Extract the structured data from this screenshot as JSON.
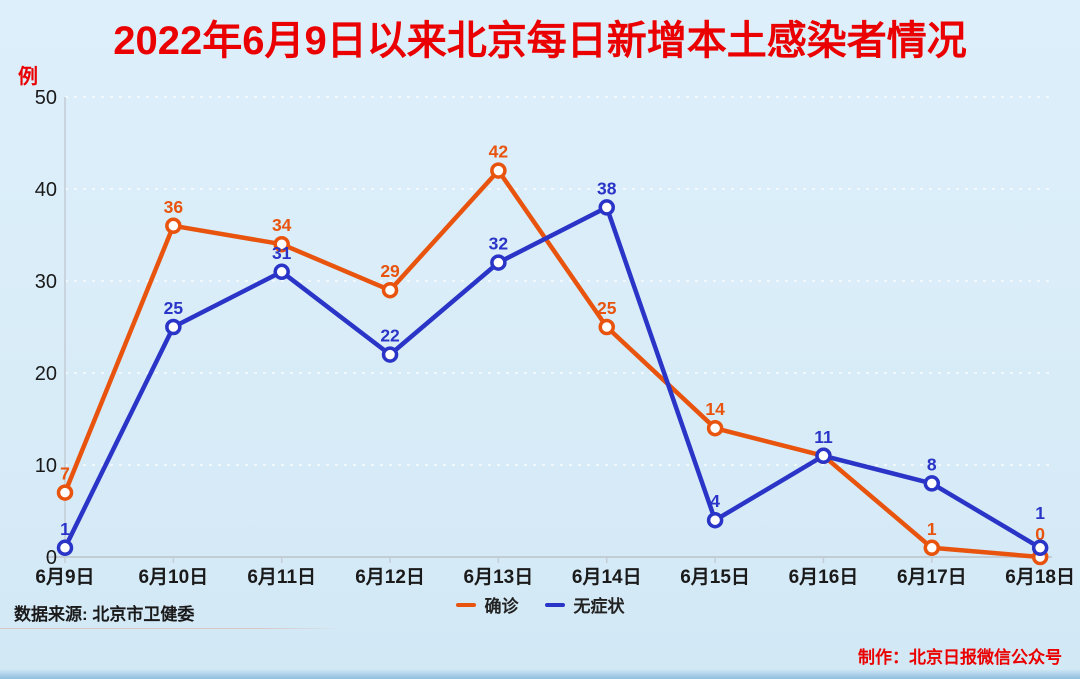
{
  "page": {
    "title": "2022年6月9日以来北京每日新增本土感染者情况"
  },
  "source": {
    "label": "数据来源: 北京市卫健委"
  },
  "credit": {
    "label": "制作：北京日报微信公众号"
  },
  "colors": {
    "background": "#d9edf8",
    "title_red": "#ea0000",
    "confirmed_orange": "#e8540e",
    "asymptomatic_blue": "#2a35c8",
    "axis_gray": "#c2cbd4",
    "tick_text": "#1a1a1a",
    "grid_white": "#ffffff"
  },
  "chart_data": {
    "type": "line",
    "title": "2022年6月9日以来北京每日新增本土感染者情况",
    "xlabel": "",
    "ylabel": "例",
    "ylim": [
      0,
      50
    ],
    "ytick_step": 10,
    "yticks": [
      0,
      10,
      20,
      30,
      40,
      50
    ],
    "grid": true,
    "grid_style": "dashed",
    "legend_position": "bottom-center",
    "marker": "open-circle-white-fill",
    "categories": [
      "6月9日",
      "6月10日",
      "6月11日",
      "6月12日",
      "6月13日",
      "6月14日",
      "6月15日",
      "6月16日",
      "6月17日",
      "6月18日"
    ],
    "series": [
      {
        "name": "确诊",
        "color": "#e8540e",
        "values": [
          7,
          36,
          34,
          29,
          42,
          25,
          14,
          11,
          1,
          0
        ],
        "labels": [
          "7",
          "36",
          "34",
          "29",
          "42",
          "25",
          "14",
          "",
          "1",
          "0"
        ],
        "label_dy": [
          -13,
          -13,
          -13,
          -13,
          -13,
          -13,
          -13,
          -13,
          -13,
          -17
        ]
      },
      {
        "name": "无症状",
        "color": "#2a35c8",
        "values": [
          1,
          25,
          31,
          22,
          32,
          38,
          4,
          11,
          8,
          1
        ],
        "labels": [
          "1",
          "25",
          "31",
          "22",
          "32",
          "38",
          "4",
          "11",
          "8",
          "1"
        ],
        "label_dy": [
          -13,
          -13,
          -13,
          -13,
          -13,
          -13,
          -13,
          -13,
          -13,
          -29
        ]
      }
    ]
  }
}
